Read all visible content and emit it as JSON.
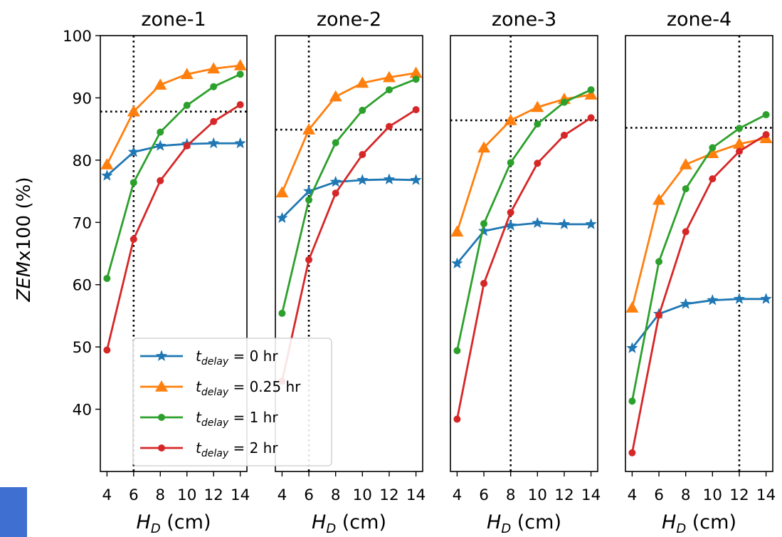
{
  "colors": {
    "t0": "#1f77b4",
    "t025": "#ff7f0e",
    "t1": "#2ca02c",
    "t2": "#d62728",
    "corner_tab": "#3f6fd1"
  },
  "legend": {
    "placement": "lower-left of zone-1 panel",
    "entries": [
      {
        "key": "t0",
        "prefix": "t",
        "sub": "delay",
        "suffix": " = 0 hr",
        "marker": "star"
      },
      {
        "key": "t025",
        "prefix": "t",
        "sub": "delay",
        "suffix": " = 0.25 hr",
        "marker": "triangle"
      },
      {
        "key": "t1",
        "prefix": "t",
        "sub": "delay",
        "suffix": " = 1 hr",
        "marker": "circle"
      },
      {
        "key": "t2",
        "prefix": "t",
        "sub": "delay",
        "suffix": " = 2 hr",
        "marker": "circle"
      }
    ]
  },
  "chart_data": [
    {
      "type": "line",
      "title": "zone-1",
      "xlabel_main": "H",
      "xlabel_sub": "D",
      "xlabel_unit": " (cm)",
      "ylabel": "ZEMx100 (%)",
      "x": [
        4,
        6,
        8,
        10,
        12,
        14
      ],
      "xlim": [
        3.5,
        14.5
      ],
      "ylim": [
        30,
        100
      ],
      "yticks": [
        40,
        50,
        60,
        70,
        80,
        90,
        100
      ],
      "vline": 6,
      "hline": 87.8,
      "series": [
        {
          "key": "t0",
          "values": [
            77.5,
            81.3,
            82.3,
            82.6,
            82.7,
            82.7
          ]
        },
        {
          "key": "t025",
          "values": [
            79.3,
            87.8,
            92.1,
            93.8,
            94.7,
            95.2
          ]
        },
        {
          "key": "t1",
          "values": [
            61.0,
            76.4,
            84.5,
            88.8,
            91.8,
            93.8
          ]
        },
        {
          "key": "t2",
          "values": [
            49.5,
            67.3,
            76.7,
            82.3,
            86.2,
            88.9
          ]
        }
      ]
    },
    {
      "type": "line",
      "title": "zone-2",
      "xlabel_main": "H",
      "xlabel_sub": "D",
      "xlabel_unit": " (cm)",
      "x": [
        4,
        6,
        8,
        10,
        12,
        14
      ],
      "xlim": [
        3.5,
        14.5
      ],
      "ylim": [
        30,
        100
      ],
      "vline": 6,
      "hline": 84.9,
      "series": [
        {
          "key": "t0",
          "values": [
            70.7,
            75.0,
            76.5,
            76.8,
            76.9,
            76.8
          ]
        },
        {
          "key": "t025",
          "values": [
            74.8,
            84.9,
            90.2,
            92.4,
            93.3,
            94.0
          ]
        },
        {
          "key": "t1",
          "values": [
            55.4,
            73.6,
            82.8,
            88.0,
            91.3,
            93.0
          ]
        },
        {
          "key": "t2",
          "values": [
            44.5,
            64.0,
            74.7,
            80.9,
            85.4,
            88.1
          ]
        }
      ]
    },
    {
      "type": "line",
      "title": "zone-3",
      "xlabel_main": "H",
      "xlabel_sub": "D",
      "xlabel_unit": " (cm)",
      "x": [
        4,
        6,
        8,
        10,
        12,
        14
      ],
      "xlim": [
        3.5,
        14.5
      ],
      "ylim": [
        30,
        100
      ],
      "vline": 8,
      "hline": 86.4,
      "series": [
        {
          "key": "t0",
          "values": [
            63.4,
            68.6,
            69.5,
            69.9,
            69.7,
            69.7
          ]
        },
        {
          "key": "t025",
          "values": [
            68.5,
            82.0,
            86.4,
            88.5,
            89.8,
            90.5
          ]
        },
        {
          "key": "t1",
          "values": [
            49.4,
            69.8,
            79.6,
            85.8,
            89.3,
            91.3
          ]
        },
        {
          "key": "t2",
          "values": [
            38.4,
            60.2,
            71.6,
            79.5,
            84.0,
            86.8
          ]
        }
      ]
    },
    {
      "type": "line",
      "title": "zone-4",
      "xlabel_main": "H",
      "xlabel_sub": "D",
      "xlabel_unit": " (cm)",
      "x": [
        4,
        6,
        8,
        10,
        12,
        14
      ],
      "xlim": [
        3.5,
        14.5
      ],
      "ylim": [
        30,
        100
      ],
      "vline": 12,
      "hline": 85.2,
      "series": [
        {
          "key": "t0",
          "values": [
            49.8,
            55.3,
            56.9,
            57.5,
            57.7,
            57.7
          ]
        },
        {
          "key": "t025",
          "values": [
            56.3,
            73.6,
            79.3,
            81.1,
            82.6,
            83.5
          ]
        },
        {
          "key": "t1",
          "values": [
            41.3,
            63.7,
            75.4,
            82.0,
            85.1,
            87.3
          ]
        },
        {
          "key": "t2",
          "values": [
            33.0,
            55.1,
            68.5,
            77.0,
            81.4,
            84.1
          ]
        }
      ]
    }
  ]
}
